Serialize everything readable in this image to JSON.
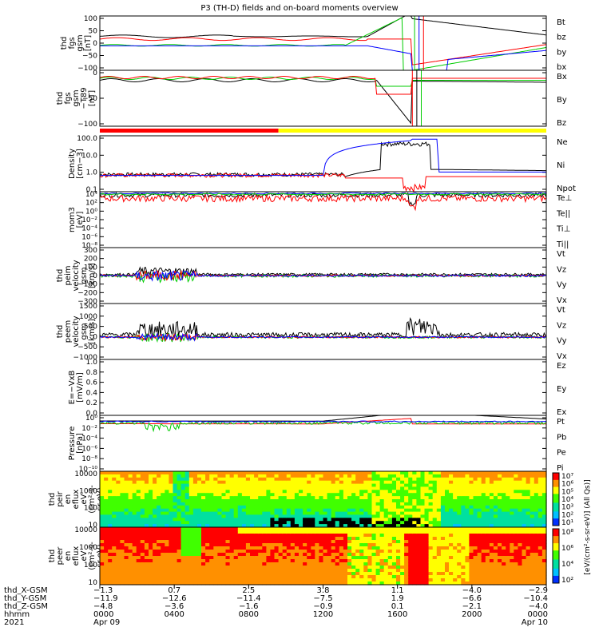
{
  "title": "P3 (TH-D) fields and on-board moments overview",
  "chart_data": [
    {
      "type": "line",
      "panel": "fgs_gsm",
      "ylabel": [
        "thd",
        "fgs",
        "gsm",
        "[nT]"
      ],
      "ylim": [
        -100,
        100
      ],
      "yticks": [
        "100",
        "50",
        "0",
        "−50",
        "−100"
      ],
      "legend": [
        {
          "name": "Bt",
          "color": "#000000"
        },
        {
          "name": "bz",
          "color": "#ff0000"
        },
        {
          "name": "by",
          "color": "#00cc00"
        },
        {
          "name": "bx",
          "color": "#0000ff"
        }
      ]
    },
    {
      "type": "line",
      "panel": "fgs_gsm_t89",
      "ylabel": [
        "thd",
        "fgs",
        "gsm",
        "−T89",
        "[nT]"
      ],
      "ylim": [
        -120,
        20
      ],
      "yticks": [
        "0",
        "−50",
        "−100"
      ],
      "legend": [
        {
          "name": "Bx",
          "color": "#000000"
        },
        {
          "name": "By",
          "color": "#00cc00"
        },
        {
          "name": "Bz",
          "color": "#ff0000"
        }
      ]
    },
    {
      "type": "line",
      "panel": "density",
      "ylabel": [
        "Density",
        "[cm−3]"
      ],
      "scale": "log",
      "yticks": [
        "100.0",
        "10.0",
        "1.0",
        "0.1"
      ],
      "legend": [
        {
          "name": "Ne",
          "color": "#ff0000"
        },
        {
          "name": "Ni",
          "color": "#000000"
        },
        {
          "name": "Npot",
          "color": "#0000ff"
        }
      ]
    },
    {
      "type": "line",
      "panel": "temperature",
      "ylabel": [
        "mom3",
        "[eV]"
      ],
      "scale": "log",
      "yticks": [
        "10⁴",
        "10²",
        "10⁰",
        "10⁻²",
        "10⁻⁴",
        "10⁻⁶",
        "10⁻⁸"
      ],
      "legend": [
        {
          "name": "Te⊥",
          "color": "#ff0000"
        },
        {
          "name": "Te||",
          "color": "#000000"
        },
        {
          "name": "Ti⊥",
          "color": "#0000ff"
        },
        {
          "name": "Ti||",
          "color": "#00cc00"
        }
      ]
    },
    {
      "type": "line",
      "panel": "peim_velocity",
      "ylabel": [
        "thd",
        "peim",
        "velocity",
        "gsm",
        "[km/s]"
      ],
      "ylim": [
        -300,
        300
      ],
      "yticks": [
        "300",
        "200",
        "100",
        "0",
        "−100",
        "−200",
        "−300"
      ],
      "legend": [
        {
          "name": "Vt",
          "color": "#000000"
        },
        {
          "name": "Vz",
          "color": "#ff0000"
        },
        {
          "name": "Vy",
          "color": "#00cc00"
        },
        {
          "name": "Vx",
          "color": "#0000ff"
        }
      ]
    },
    {
      "type": "line",
      "panel": "peem_velocity",
      "ylabel": [
        "thd",
        "peem",
        "velocity",
        "gsm",
        "[km/s]"
      ],
      "ylim": [
        -1000,
        1500
      ],
      "yticks": [
        "1500",
        "1000",
        "500",
        "0",
        "−500",
        "−1000"
      ],
      "legend": [
        {
          "name": "Vt",
          "color": "#000000"
        },
        {
          "name": "Vz",
          "color": "#ff0000"
        },
        {
          "name": "Vy",
          "color": "#00cc00"
        },
        {
          "name": "Vx",
          "color": "#0000ff"
        }
      ]
    },
    {
      "type": "line",
      "panel": "e_vxb",
      "ylabel": [
        "E=−VxB",
        "[mV/m]"
      ],
      "ylim": [
        0,
        1
      ],
      "yticks": [
        "1.0",
        "0.8",
        "0.6",
        "0.4",
        "0.2",
        "0.0"
      ],
      "legend": [
        {
          "name": "Ez",
          "color": "#ff0000"
        },
        {
          "name": "Ey",
          "color": "#00cc00"
        },
        {
          "name": "Ex",
          "color": "#0000ff"
        }
      ]
    },
    {
      "type": "line",
      "panel": "pressure",
      "ylabel": [
        "Pressure",
        "[nPa]"
      ],
      "scale": "log",
      "yticks": [
        "10⁰",
        "10⁻²",
        "10⁻⁴",
        "10⁻⁶",
        "10⁻⁸",
        "10⁻¹⁰"
      ],
      "legend": [
        {
          "name": "Pt",
          "color": "#000000"
        },
        {
          "name": "Pb",
          "color": "#ff0000"
        },
        {
          "name": "Pe",
          "color": "#00cc00"
        },
        {
          "name": "Pi",
          "color": "#0000ff"
        }
      ]
    },
    {
      "type": "heatmap",
      "panel": "peir_eflux",
      "ylabel": [
        "thd",
        "peir",
        "en",
        "eflux",
        "eV",
        "(cm²-s-",
        "sr-eV)"
      ],
      "yticks": [
        "10000",
        "1000",
        "100",
        "10"
      ],
      "colorbar": {
        "ticks": [
          "10⁷",
          "10⁶",
          "10⁵",
          "10⁴",
          "10³",
          "10²",
          "10¹"
        ],
        "label": "[eV/(cm²-s-sr-eV)] (All Qs)]"
      }
    },
    {
      "type": "heatmap",
      "panel": "peer_eflux",
      "ylabel": [
        "thd",
        "peer",
        "en",
        "eflux",
        "eV",
        "(cm²-s-",
        "sr-eV)"
      ],
      "yticks": [
        "10000",
        "1000",
        "100",
        "10"
      ],
      "colorbar": {
        "ticks": [
          "10⁸",
          "10⁶",
          "10⁴",
          "10²"
        ],
        "label": "[eV/(cm²-s-sr-eV)]"
      }
    }
  ],
  "time_axis": {
    "row_labels": [
      "thd_X-GSM",
      "thd_Y-GSM",
      "thd_Z-GSM",
      "hhmm",
      "2021"
    ],
    "columns": [
      {
        "x": "−1.3",
        "y": "−11.9",
        "z": "−4.8",
        "t": "0000",
        "d": "Apr 09"
      },
      {
        "x": "0.7",
        "y": "−12.6",
        "z": "−3.6",
        "t": "0400",
        "d": ""
      },
      {
        "x": "2.5",
        "y": "−11.4",
        "z": "−1.6",
        "t": "0800",
        "d": ""
      },
      {
        "x": "3.8",
        "y": "−7.5",
        "z": "−0.9",
        "t": "1200",
        "d": ""
      },
      {
        "x": "1.1",
        "y": "1.9",
        "z": "0.1",
        "t": "1600",
        "d": ""
      },
      {
        "x": "−4.0",
        "y": "−6.6",
        "z": "−2.1",
        "t": "2000",
        "d": ""
      },
      {
        "x": "−2.9",
        "y": "−10.4",
        "z": "−4.0",
        "t": "0000",
        "d": "Apr 10"
      }
    ]
  }
}
